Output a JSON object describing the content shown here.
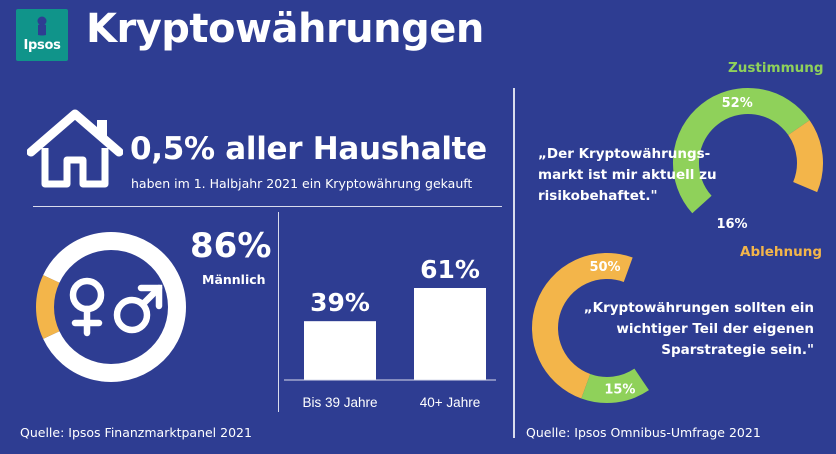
{
  "header": {
    "logo_text": "Ipsos",
    "title": "Kryptowährungen"
  },
  "households": {
    "headline": "0,5% aller Haushalte",
    "subline": "haben im 1. Halbjahr 2021 ein Kryptowährung  gekauft",
    "icon": "house-icon"
  },
  "colors": {
    "background": "#2e3d92",
    "agree": "#8fd15a",
    "disagree": "#f3b54a",
    "white": "#ffffff"
  },
  "sources": {
    "left": "Quelle: Ipsos Finanzmarktpanel  2021",
    "right": "Quelle: Ipsos Omnibus-Umfrage 2021"
  },
  "legend": {
    "agree": "Zustimmung",
    "disagree": "Ablehnung"
  },
  "chart_data": [
    {
      "type": "pie",
      "categories": [
        "Männlich",
        "Weiblich"
      ],
      "values": [
        86,
        14
      ],
      "labels": [
        "86%",
        ""
      ],
      "caption": "Männlich",
      "icon": "gender-symbols-icon"
    },
    {
      "type": "bar",
      "categories": [
        "Bis 39 Jahre",
        "40+ Jahre"
      ],
      "values": [
        39,
        61
      ],
      "labels": [
        "39%",
        "61%"
      ],
      "ylim": [
        0,
        61
      ]
    },
    {
      "type": "pie",
      "title": "„Der Kryptowährungs-markt ist mir aktuell zu risikobehaftet.\"",
      "title_lines": [
        "„Der Kryptowährungs-",
        "markt ist mir aktuell zu",
        "risikobehaftet.\""
      ],
      "categories": [
        "Zustimmung",
        "Ablehnung"
      ],
      "values": [
        52,
        16
      ],
      "labels": [
        "52%",
        "16%"
      ]
    },
    {
      "type": "pie",
      "title": "„Kryptowährungen sollten ein wichtiger Teil der eigenen Sparstrategie sein.\"",
      "title_lines": [
        "„Kryptowährungen sollten ein",
        "wichtiger Teil der eigenen",
        "Sparstrategie sein.\""
      ],
      "categories": [
        "Ablehnung",
        "Zustimmung"
      ],
      "values": [
        50,
        15
      ],
      "labels": [
        "50%",
        "15%"
      ]
    }
  ]
}
